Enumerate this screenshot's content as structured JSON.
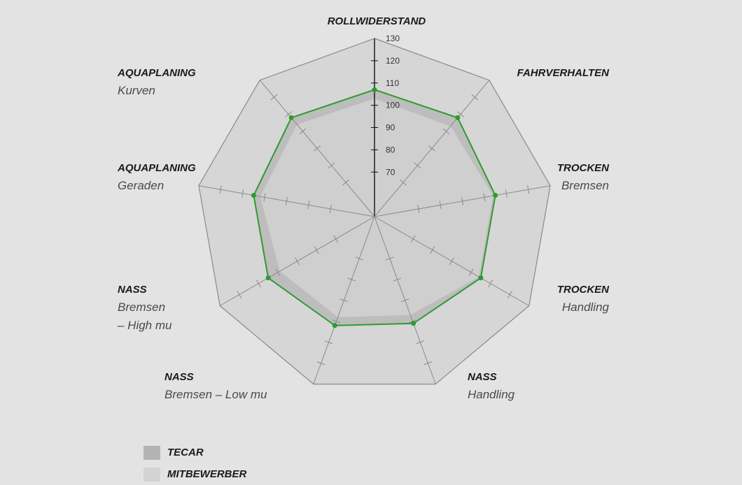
{
  "chart_data": {
    "type": "radar",
    "axes": [
      {
        "title": "ROLLWIDERSTAND",
        "sub": ""
      },
      {
        "title": "FAHRVERHALTEN",
        "sub": ""
      },
      {
        "title": "TROCKEN",
        "sub": "Bremsen"
      },
      {
        "title": "TROCKEN",
        "sub": "Handling"
      },
      {
        "title": "NASS",
        "sub": "Handling"
      },
      {
        "title": "NASS",
        "sub": "Bremsen – Low mu"
      },
      {
        "title": "NASS",
        "sub": "Bremsen|– High mu"
      },
      {
        "title": "AQUAPLANING",
        "sub": "Geraden"
      },
      {
        "title": "AQUAPLANING",
        "sub": "Kurven"
      }
    ],
    "rticks": [
      70,
      80,
      90,
      100,
      110,
      120,
      130
    ],
    "range": [
      50,
      130
    ],
    "series": [
      {
        "name": "TECAR",
        "values": [
          107,
          108,
          105,
          105,
          101,
          102,
          105,
          105,
          108
        ],
        "color": "#2f9a2f",
        "fill": "#bdbdbd"
      },
      {
        "name": "MITBEWERBER",
        "values": [
          103,
          103,
          104,
          104,
          97,
          98,
          99,
          102,
          104
        ],
        "color": "#cfcfcf"
      }
    ],
    "grid_outer": 130
  },
  "legend": [
    {
      "label": "TECAR",
      "color": "#b3b3b3"
    },
    {
      "label": "MITBEWERBER",
      "color": "#d3d3d3"
    }
  ]
}
